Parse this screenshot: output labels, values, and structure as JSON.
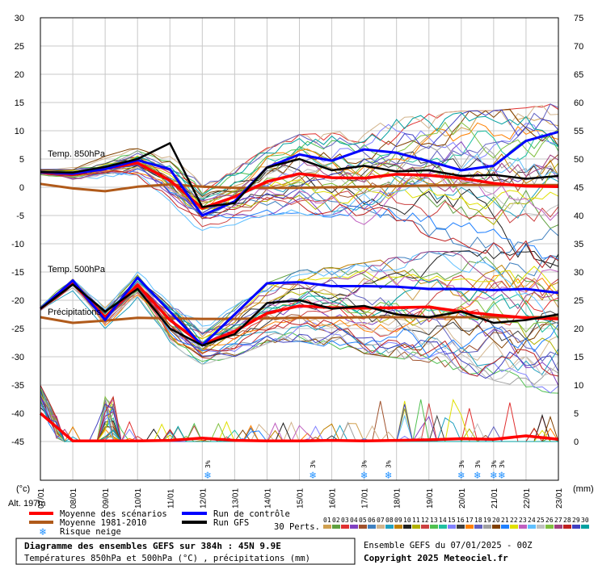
{
  "left_unit": "(°c)",
  "right_unit": "(mm)",
  "altitude": "Alt. 197m",
  "section_labels": {
    "t850": "Temp. 850hPa",
    "t500": "Temp. 500hPa",
    "precip": "Précipitations"
  },
  "legend": {
    "mean": "Moyenne des scénarios",
    "clim": "Moyenne 1981-2010",
    "snow": "Risque neige",
    "control": "Run de contrôle",
    "gfs": "Run GFS",
    "perts": "30 Perts.",
    "pert_numbers": [
      "01",
      "02",
      "03",
      "04",
      "05",
      "06",
      "07",
      "08",
      "09",
      "10",
      "11",
      "12",
      "13",
      "14",
      "15",
      "16",
      "17",
      "18",
      "19",
      "20",
      "21",
      "22",
      "23",
      "24",
      "25",
      "26",
      "27",
      "28",
      "29",
      "30"
    ],
    "pert_colors": [
      "#d0a050",
      "#60a040",
      "#e03030",
      "#8040c0",
      "#a0522d",
      "#4080c0",
      "#d2b48c",
      "#20a0c0",
      "#c08000",
      "#202020",
      "#b0b000",
      "#cc4040",
      "#50c050",
      "#20c0a0",
      "#8080ff",
      "#404040",
      "#ff8000",
      "#6060c0",
      "#a0a0a0",
      "#804000",
      "#2080ff",
      "#e0e000",
      "#c060c0",
      "#60c0ff",
      "#c0c0c0",
      "#80c040",
      "#a04080",
      "#c02020",
      "#4040c0",
      "#00a0a0"
    ]
  },
  "title_box": {
    "line1": "Diagramme des ensembles GEFS sur 384h : 45N 9.9E",
    "line2": "Températures 850hPa et 500hPa (°C) , précipitations (mm)"
  },
  "run_info": "Ensemble GEFS du 07/01/2025 - 00Z",
  "copyright": "Copyright 2025 Meteociel.fr",
  "colors": {
    "mean": "#ff0000",
    "clim": "#b05a1a",
    "control": "#0000ff",
    "gfs": "#000000",
    "snow": "#2090ff",
    "grid": "#c8c8c8"
  },
  "chart_data": {
    "type": "line",
    "x": [
      "07/01",
      "08/01",
      "09/01",
      "10/01",
      "11/01",
      "12/01",
      "13/01",
      "14/01",
      "15/01",
      "16/01",
      "17/01",
      "18/01",
      "19/01",
      "20/01",
      "21/01",
      "22/01",
      "23/01"
    ],
    "left_axis": {
      "ylim": [
        -45,
        30
      ],
      "ticks": [
        30,
        25,
        20,
        15,
        10,
        5,
        0,
        -5,
        -10,
        -15,
        -20,
        -25,
        -30,
        -35,
        -40,
        -45
      ]
    },
    "right_axis": {
      "ylim": [
        0,
        75
      ],
      "ticks": [
        75,
        70,
        65,
        60,
        55,
        50,
        45,
        40,
        35,
        30,
        25,
        20,
        15,
        10,
        5,
        0
      ]
    },
    "snow_risk": [
      {
        "x": "11/28",
        "pct": "3%"
      },
      {
        "x": "15/10",
        "pct": "3%"
      },
      {
        "x": "17/00",
        "pct": "3%"
      },
      {
        "x": "17/18",
        "pct": "3%"
      },
      {
        "x": "20/00",
        "pct": "3%"
      },
      {
        "x": "20/12",
        "pct": "3%"
      },
      {
        "x": "21/00",
        "pct": "3%"
      },
      {
        "x": "21/06",
        "pct": "3%"
      }
    ],
    "series": [
      {
        "name": "Moyenne des scénarios",
        "panel": "t850",
        "values": [
          2.7,
          2.3,
          3.3,
          4.3,
          1.2,
          -3.7,
          -1.7,
          1.0,
          2.4,
          1.7,
          1.6,
          2.3,
          2.1,
          1.6,
          0.7,
          0.2,
          0.1
        ]
      },
      {
        "name": "Run de contrôle",
        "panel": "t850",
        "values": [
          2.7,
          2.4,
          3.2,
          4.8,
          3.2,
          -5.0,
          -2.5,
          3.5,
          5.8,
          4.7,
          6.7,
          6.1,
          4.6,
          3.0,
          3.8,
          8.2,
          9.8
        ]
      },
      {
        "name": "Run GFS",
        "panel": "t850",
        "values": [
          2.7,
          2.6,
          3.6,
          5.0,
          7.8,
          -3.5,
          -2.8,
          3.5,
          5.0,
          3.0,
          3.8,
          2.8,
          3.0,
          2.0,
          2.2,
          1.5,
          2.0
        ]
      },
      {
        "name": "Moyenne 1981-2010",
        "panel": "t850",
        "values": [
          0.6,
          -0.2,
          -0.7,
          0.1,
          0.5,
          0.1,
          -0.1,
          -0.1,
          -0.1,
          0.0,
          0.1,
          0.2,
          0.3,
          0.4,
          0.4,
          0.4,
          0.4
        ]
      },
      {
        "name": "Moyenne des scénarios",
        "panel": "t500",
        "values": [
          -21.5,
          -17.0,
          -23.0,
          -17.3,
          -23.5,
          -27.8,
          -25.5,
          -22.3,
          -21.0,
          -21.3,
          -21.4,
          -21.3,
          -21.2,
          -22.0,
          -22.6,
          -23.1,
          -23.3
        ]
      },
      {
        "name": "Run de contrôle",
        "panel": "t500",
        "values": [
          -21.5,
          -16.5,
          -23.5,
          -16.0,
          -22.0,
          -28.0,
          -22.5,
          -17.0,
          -16.8,
          -17.5,
          -17.5,
          -17.6,
          -18.0,
          -18.0,
          -18.2,
          -18.0,
          -18.7
        ]
      },
      {
        "name": "Run GFS",
        "panel": "t500",
        "values": [
          -21.5,
          -17.2,
          -22.0,
          -18.0,
          -25.0,
          -28.0,
          -26.0,
          -20.5,
          -20.0,
          -21.5,
          -21.0,
          -22.5,
          -23.0,
          -22.0,
          -24.0,
          -23.5,
          -22.5
        ]
      },
      {
        "name": "Moyenne 1981-2010",
        "panel": "t500",
        "values": [
          -23.0,
          -24.0,
          -23.6,
          -23.1,
          -23.2,
          -23.3,
          -23.3,
          -23.2,
          -23.1,
          -23.1,
          -23.0,
          -23.0,
          -23.0,
          -23.0,
          -23.0,
          -23.0,
          -23.0
        ]
      },
      {
        "name": "Moyenne des scénarios",
        "panel": "precip",
        "values": [
          5,
          0.1,
          0.1,
          0.1,
          0.2,
          0.6,
          0.2,
          0.1,
          0.1,
          0.2,
          0.1,
          0.2,
          0.3,
          0.5,
          0.4,
          1.0,
          0.4
        ]
      }
    ]
  }
}
